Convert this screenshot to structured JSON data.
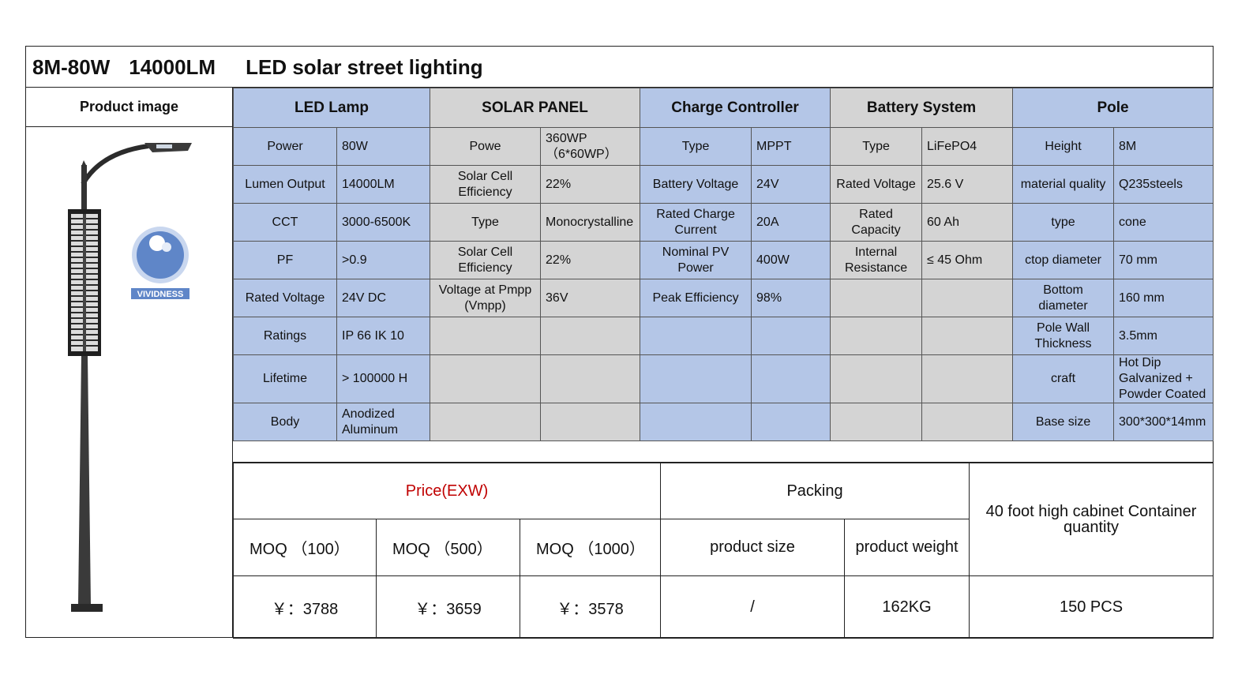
{
  "title": {
    "model": "8M-80W",
    "lumen": "14000LM",
    "name": "LED solar street lighting"
  },
  "product_image_label": "Product image",
  "brand_logo_text": "VIVIDNESS",
  "sections": {
    "led": "LED Lamp",
    "solar": "SOLAR PANEL",
    "controller": "Charge Controller",
    "battery": "Battery System",
    "pole": "Pole"
  },
  "rows": [
    {
      "led_l": "Power",
      "led_v": "80W",
      "sol_l": "Powe",
      "sol_v": "360WP\n（6*60WP）",
      "cc_l": "Type",
      "cc_v": "MPPT",
      "bat_l": "Type",
      "bat_v": "LiFePO4",
      "pole_l": "Height",
      "pole_v": "8M"
    },
    {
      "led_l": "Lumen Output",
      "led_v": "14000LM",
      "sol_l": "Solar Cell Efficiency",
      "sol_v": "22%",
      "cc_l": "Battery Voltage",
      "cc_v": "24V",
      "bat_l": "Rated Voltage",
      "bat_v": "25.6 V",
      "pole_l": "material quality",
      "pole_v": "Q235steels"
    },
    {
      "led_l": "CCT",
      "led_v": "3000-6500K",
      "sol_l": "Type",
      "sol_v": "Monocrystalline",
      "cc_l": "Rated Charge Current",
      "cc_v": "20A",
      "bat_l": "Rated Capacity",
      "bat_v": "60 Ah",
      "pole_l": "type",
      "pole_v": "cone"
    },
    {
      "led_l": "PF",
      "led_v": ">0.9",
      "sol_l": "Solar Cell Efficiency",
      "sol_v": "22%",
      "cc_l": "Nominal PV Power",
      "cc_v": "400W",
      "bat_l": "Internal Resistance",
      "bat_v": "≤ 45 Ohm",
      "pole_l": "ctop diameter",
      "pole_v": "70 mm"
    },
    {
      "led_l": "Rated Voltage",
      "led_v": "24V DC",
      "sol_l": "Voltage at Pmpp (Vmpp)",
      "sol_v": "36V",
      "cc_l": "Peak Efficiency",
      "cc_v": "98%",
      "bat_l": "",
      "bat_v": "",
      "pole_l": "Bottom diameter",
      "pole_v": "160 mm"
    },
    {
      "led_l": "Ratings",
      "led_v": "IP 66 IK 10",
      "sol_l": "",
      "sol_v": "",
      "cc_l": "",
      "cc_v": "",
      "bat_l": "",
      "bat_v": "",
      "pole_l": "Pole Wall Thickness",
      "pole_v": "3.5mm"
    },
    {
      "led_l": "Lifetime",
      "led_v": "> 100000 H",
      "sol_l": "",
      "sol_v": "",
      "cc_l": "",
      "cc_v": "",
      "bat_l": "",
      "bat_v": "",
      "pole_l": "craft",
      "pole_v": "Hot Dip Galvanized + Powder Coated"
    },
    {
      "led_l": "Body",
      "led_v": "Anodized Aluminum",
      "sol_l": "",
      "sol_v": "",
      "cc_l": "",
      "cc_v": "",
      "bat_l": "",
      "bat_v": "",
      "pole_l": "Base size",
      "pole_v": "300*300*14mm"
    }
  ],
  "pricing": {
    "price_header": "Price(EXW)",
    "packing_header": "Packing",
    "container_header": "40 foot high cabinet Container quantity",
    "moq": [
      "MOQ （100）",
      "MOQ （500）",
      "MOQ （1000）"
    ],
    "product_size_label": "product size",
    "product_weight_label": "product weight",
    "prices": [
      "￥：3788",
      "￥：3659",
      "￥：3578"
    ],
    "product_size": "/",
    "product_weight": "162KG",
    "container_qty": "150 PCS"
  },
  "colors": {
    "spec_blue": "#b4c6e7",
    "spec_gray": "#d4d4d4",
    "price_red": "#c00000"
  }
}
